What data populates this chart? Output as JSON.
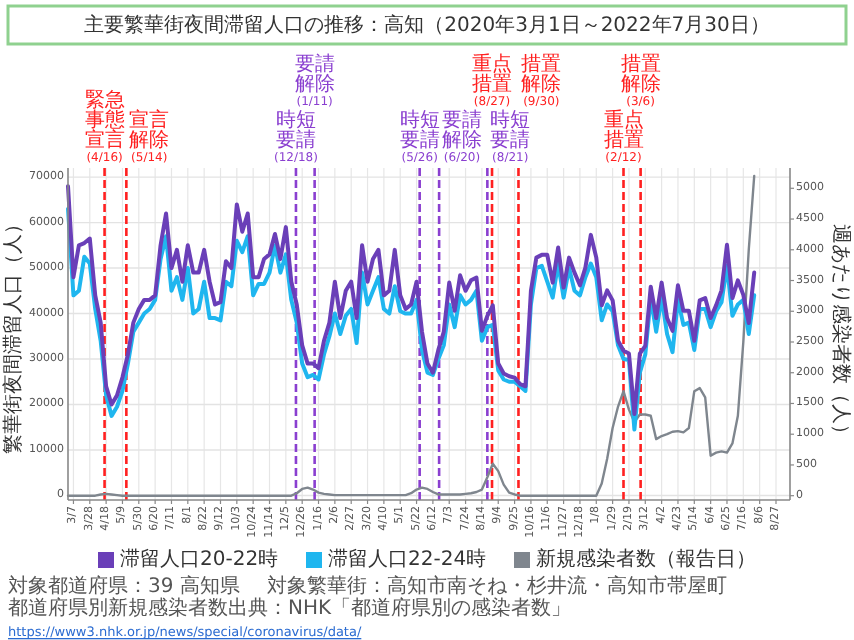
{
  "chart_data": {
    "type": "line",
    "title": "主要繁華街夜間滞留人口の推移：高知（2020年3月1日～2022年7月30日）",
    "ylabel": "繁華街夜間滞留人口（人）",
    "y2label": "週あたり感染者数（人）",
    "x": [
      "2020-02-29",
      "2020-03-07",
      "2020-03-14",
      "2020-03-21",
      "2020-03-28",
      "2020-04-04",
      "2020-04-11",
      "2020-04-18",
      "2020-04-25",
      "2020-05-02",
      "2020-05-09",
      "2020-05-16",
      "2020-05-23",
      "2020-05-30",
      "2020-06-06",
      "2020-06-13",
      "2020-06-20",
      "2020-06-27",
      "2020-07-04",
      "2020-07-11",
      "2020-07-18",
      "2020-07-25",
      "2020-08-01",
      "2020-08-08",
      "2020-08-15",
      "2020-08-22",
      "2020-08-29",
      "2020-09-05",
      "2020-09-12",
      "2020-09-19",
      "2020-09-26",
      "2020-10-03",
      "2020-10-10",
      "2020-10-17",
      "2020-10-24",
      "2020-10-31",
      "2020-11-07",
      "2020-11-14",
      "2020-11-21",
      "2020-11-28",
      "2020-12-05",
      "2020-12-12",
      "2020-12-19",
      "2020-12-26",
      "2021-01-02",
      "2021-01-09",
      "2021-01-16",
      "2021-01-23",
      "2021-01-30",
      "2021-02-06",
      "2021-02-13",
      "2021-02-20",
      "2021-02-27",
      "2021-03-06",
      "2021-03-13",
      "2021-03-20",
      "2021-03-27",
      "2021-04-03",
      "2021-04-10",
      "2021-04-17",
      "2021-04-24",
      "2021-05-01",
      "2021-05-08",
      "2021-05-15",
      "2021-05-22",
      "2021-05-29",
      "2021-06-05",
      "2021-06-12",
      "2021-06-19",
      "2021-06-26",
      "2021-07-03",
      "2021-07-10",
      "2021-07-17",
      "2021-07-24",
      "2021-07-31",
      "2021-08-07",
      "2021-08-14",
      "2021-08-21",
      "2021-08-28",
      "2021-09-04",
      "2021-09-11",
      "2021-09-18",
      "2021-09-25",
      "2021-10-02",
      "2021-10-09",
      "2021-10-16",
      "2021-10-23",
      "2021-10-30",
      "2021-11-06",
      "2021-11-13",
      "2021-11-20",
      "2021-11-27",
      "2021-12-04",
      "2021-12-11",
      "2021-12-18",
      "2021-12-25",
      "2022-01-01",
      "2022-01-08",
      "2022-01-15",
      "2022-01-22",
      "2022-01-29",
      "2022-02-05",
      "2022-02-12",
      "2022-02-19",
      "2022-02-26",
      "2022-03-05",
      "2022-03-12",
      "2022-03-19",
      "2022-03-26",
      "2022-04-02",
      "2022-04-09",
      "2022-04-16",
      "2022-04-23",
      "2022-04-30",
      "2022-05-07",
      "2022-05-14",
      "2022-05-21",
      "2022-05-28",
      "2022-06-04",
      "2022-06-11",
      "2022-06-18",
      "2022-06-25",
      "2022-07-02",
      "2022-07-09",
      "2022-07-16",
      "2022-07-23",
      "2022-07-30"
    ],
    "xlim": [
      "2020-02-29",
      "2022-09-14"
    ],
    "xticks": [
      {
        "value": "2020-03-07",
        "label": "3/7"
      },
      {
        "value": "2020-03-28",
        "label": "3/28"
      },
      {
        "value": "2020-04-18",
        "label": "4/18"
      },
      {
        "value": "2020-05-09",
        "label": "5/9"
      },
      {
        "value": "2020-05-30",
        "label": "5/30"
      },
      {
        "value": "2020-06-20",
        "label": "6/20"
      },
      {
        "value": "2020-07-11",
        "label": "7/11"
      },
      {
        "value": "2020-08-01",
        "label": "8/1"
      },
      {
        "value": "2020-08-22",
        "label": "8/22"
      },
      {
        "value": "2020-09-12",
        "label": "9/12"
      },
      {
        "value": "2020-10-03",
        "label": "10/3"
      },
      {
        "value": "2020-10-24",
        "label": "10/24"
      },
      {
        "value": "2020-11-14",
        "label": "11/14"
      },
      {
        "value": "2020-12-05",
        "label": "12/5"
      },
      {
        "value": "2020-12-26",
        "label": "12/26"
      },
      {
        "value": "2021-01-16",
        "label": "1/16"
      },
      {
        "value": "2021-02-06",
        "label": "2/6"
      },
      {
        "value": "2021-02-27",
        "label": "2/27"
      },
      {
        "value": "2021-03-20",
        "label": "3/20"
      },
      {
        "value": "2021-04-10",
        "label": "4/10"
      },
      {
        "value": "2021-05-01",
        "label": "5/1"
      },
      {
        "value": "2021-05-22",
        "label": "5/22"
      },
      {
        "value": "2021-06-12",
        "label": "6/12"
      },
      {
        "value": "2021-07-03",
        "label": "7/3"
      },
      {
        "value": "2021-07-24",
        "label": "7/24"
      },
      {
        "value": "2021-08-14",
        "label": "8/14"
      },
      {
        "value": "2021-09-04",
        "label": "9/4"
      },
      {
        "value": "2021-09-25",
        "label": "9/25"
      },
      {
        "value": "2021-10-16",
        "label": "10/16"
      },
      {
        "value": "2021-11-06",
        "label": "11/6"
      },
      {
        "value": "2021-11-27",
        "label": "11/27"
      },
      {
        "value": "2021-12-18",
        "label": "12/18"
      },
      {
        "value": "2022-01-08",
        "label": "1/8"
      },
      {
        "value": "2022-01-29",
        "label": "1/29"
      },
      {
        "value": "2022-02-19",
        "label": "2/19"
      },
      {
        "value": "2022-03-12",
        "label": "3/12"
      },
      {
        "value": "2022-04-02",
        "label": "4/2"
      },
      {
        "value": "2022-04-23",
        "label": "4/23"
      },
      {
        "value": "2022-05-14",
        "label": "5/14"
      },
      {
        "value": "2022-06-04",
        "label": "6/4"
      },
      {
        "value": "2022-06-25",
        "label": "6/25"
      },
      {
        "value": "2022-07-16",
        "label": "7/16"
      },
      {
        "value": "2022-08-06",
        "label": "8/6"
      },
      {
        "value": "2022-08-27",
        "label": "8/27"
      }
    ],
    "ylim": [
      -1000,
      72000
    ],
    "yticks": [
      0,
      10000,
      20000,
      30000,
      40000,
      50000,
      60000,
      70000
    ],
    "y2lim": [
      -70,
      5330
    ],
    "y2ticks": [
      0,
      500,
      1000,
      1500,
      2000,
      2500,
      3000,
      3500,
      4000,
      4500,
      5000
    ],
    "grid": true,
    "legend": "bottom",
    "series": [
      {
        "name": "滞留人口20-22時",
        "color": "#6a3fb8",
        "values": [
          68000,
          48000,
          55000,
          55500,
          56500,
          44000,
          38000,
          24000,
          20000,
          22000,
          26000,
          31000,
          38000,
          41000,
          43000,
          43000,
          44000,
          55000,
          62000,
          50000,
          54000,
          47000,
          55000,
          49000,
          49000,
          54000,
          47000,
          42000,
          42500,
          51500,
          50000,
          64000,
          58000,
          62000,
          48000,
          48000,
          52000,
          53000,
          57500,
          52000,
          59000,
          47000,
          42000,
          33000,
          29000,
          29000,
          28000,
          34000,
          38000,
          47000,
          39000,
          45000,
          47000,
          39000,
          55000,
          47000,
          52000,
          54000,
          44000,
          45000,
          54000,
          44000,
          41000,
          42000,
          47000,
          36000,
          29000,
          27000,
          32000,
          36000,
          46800,
          40600,
          48400,
          45000,
          47300,
          47900,
          36200,
          39500,
          41800,
          29000,
          26800,
          26200,
          25900,
          24500,
          24000,
          45000,
          52300,
          52900,
          52900,
          46800,
          54500,
          45700,
          52300,
          49000,
          46200,
          50100,
          57300,
          52300,
          41800,
          45100,
          42900,
          34000,
          31800,
          31200,
          17900,
          31200,
          32900,
          45900,
          39000,
          46800,
          39000,
          36200,
          46200,
          40600,
          40600,
          34000,
          42900,
          43400,
          39000,
          41800,
          45100,
          55100,
          43400,
          47300,
          44100,
          37900,
          49000
        ]
      },
      {
        "name": "滞留人口22-24時",
        "color": "#1fb6ef",
        "values": [
          63000,
          44000,
          45000,
          52500,
          51000,
          41000,
          34000,
          22000,
          17500,
          19500,
          23000,
          29000,
          36000,
          38000,
          40000,
          41000,
          43000,
          52000,
          57000,
          45000,
          48000,
          43000,
          50000,
          40000,
          41000,
          47000,
          39000,
          39000,
          38500,
          47000,
          46000,
          56000,
          53500,
          57000,
          44000,
          46500,
          46500,
          49000,
          55000,
          49000,
          53000,
          43000,
          38000,
          29000,
          26000,
          26500,
          25500,
          31000,
          35000,
          40000,
          35500,
          39500,
          41000,
          33500,
          49000,
          42000,
          45000,
          48000,
          41000,
          40000,
          46000,
          40500,
          40000,
          40000,
          43000,
          32000,
          27000,
          26500,
          30000,
          33000,
          42000,
          37000,
          44000,
          42000,
          43000,
          45000,
          34000,
          37000,
          37500,
          27500,
          25500,
          25000,
          25000,
          24000,
          23000,
          42000,
          50000,
          50500,
          47000,
          43500,
          51000,
          43500,
          50000,
          45000,
          44000,
          48000,
          51000,
          48000,
          38500,
          42000,
          40500,
          33000,
          30000,
          29800,
          14500,
          27000,
          31000,
          43500,
          36000,
          43500,
          35500,
          31500,
          43000,
          37500,
          38000,
          32000,
          41000,
          41000,
          37000,
          40500,
          42500,
          50500,
          39500,
          42000,
          43000,
          35500,
          44000
        ]
      },
      {
        "name": "新規感染者数（報告日）",
        "color": "#7f868e",
        "axis": "y2",
        "values": [
          0,
          0,
          0,
          0,
          0,
          0,
          20,
          30,
          20,
          10,
          0,
          0,
          0,
          0,
          0,
          0,
          0,
          0,
          0,
          0,
          0,
          0,
          0,
          0,
          0,
          0,
          0,
          0,
          0,
          0,
          0,
          0,
          0,
          0,
          0,
          0,
          0,
          0,
          0,
          0,
          0,
          0,
          40,
          110,
          130,
          100,
          50,
          30,
          20,
          10,
          10,
          10,
          10,
          10,
          10,
          10,
          10,
          10,
          10,
          10,
          10,
          10,
          10,
          40,
          100,
          130,
          110,
          60,
          20,
          20,
          20,
          20,
          20,
          30,
          40,
          60,
          100,
          300,
          520,
          400,
          180,
          50,
          20,
          0,
          0,
          0,
          0,
          0,
          0,
          0,
          0,
          0,
          0,
          0,
          0,
          0,
          0,
          0,
          200,
          600,
          1100,
          1450,
          1700,
          1400,
          1200,
          1320,
          1320,
          1300,
          920,
          970,
          1000,
          1040,
          1050,
          1030,
          1100,
          1700,
          1750,
          1600,
          650,
          700,
          720,
          700,
          850,
          1300,
          2500,
          4000,
          5200
        ]
      }
    ],
    "ref_lines": [
      {
        "axis": "x",
        "value": "2020-04-16",
        "label": "緊急事態宣言(4/16)",
        "color": "#ff2020",
        "line_style": "dashed"
      },
      {
        "axis": "x",
        "value": "2020-05-14",
        "label": "宣言解除(5/14)",
        "color": "#ff2020",
        "line_style": "dashed"
      },
      {
        "axis": "x",
        "value": "2020-12-18",
        "label": "時短要請(12/18)",
        "color": "#8a3fd0",
        "line_style": "dashed"
      },
      {
        "axis": "x",
        "value": "2021-01-11",
        "label": "要請解除(1/11)",
        "color": "#8a3fd0",
        "line_style": "dashed"
      },
      {
        "axis": "x",
        "value": "2021-05-26",
        "label": "時短要請(5/26)",
        "color": "#8a3fd0",
        "line_style": "dashed"
      },
      {
        "axis": "x",
        "value": "2021-06-20",
        "label": "要請解除(6/20)",
        "color": "#8a3fd0",
        "line_style": "dashed"
      },
      {
        "axis": "x",
        "value": "2021-08-21",
        "label": "時短要請(8/21)",
        "color": "#8a3fd0",
        "line_style": "dashed"
      },
      {
        "axis": "x",
        "value": "2021-08-27",
        "label": "重点措置(8/27)",
        "color": "#ff2020",
        "line_style": "dashed"
      },
      {
        "axis": "x",
        "value": "2021-09-30",
        "label": "措置解除(9/30)",
        "color": "#ff2020",
        "line_style": "dashed"
      },
      {
        "axis": "x",
        "value": "2022-02-12",
        "label": "重点措置(2/12)",
        "color": "#ff2020",
        "line_style": "dashed"
      },
      {
        "axis": "x",
        "value": "2022-03-06",
        "label": "措置解除(3/6)",
        "color": "#ff2020",
        "line_style": "dashed"
      }
    ],
    "annotations": [
      "対象都道府県：39 高知県",
      "対象繁華街：高知市南そね・杉井流・高知市帯屋町",
      "都道府県別新規感染者数出典：NHK「都道府県別の感染者数」",
      "https://www3.nhk.or.jp/news/special/coronavirus/data/"
    ]
  }
}
